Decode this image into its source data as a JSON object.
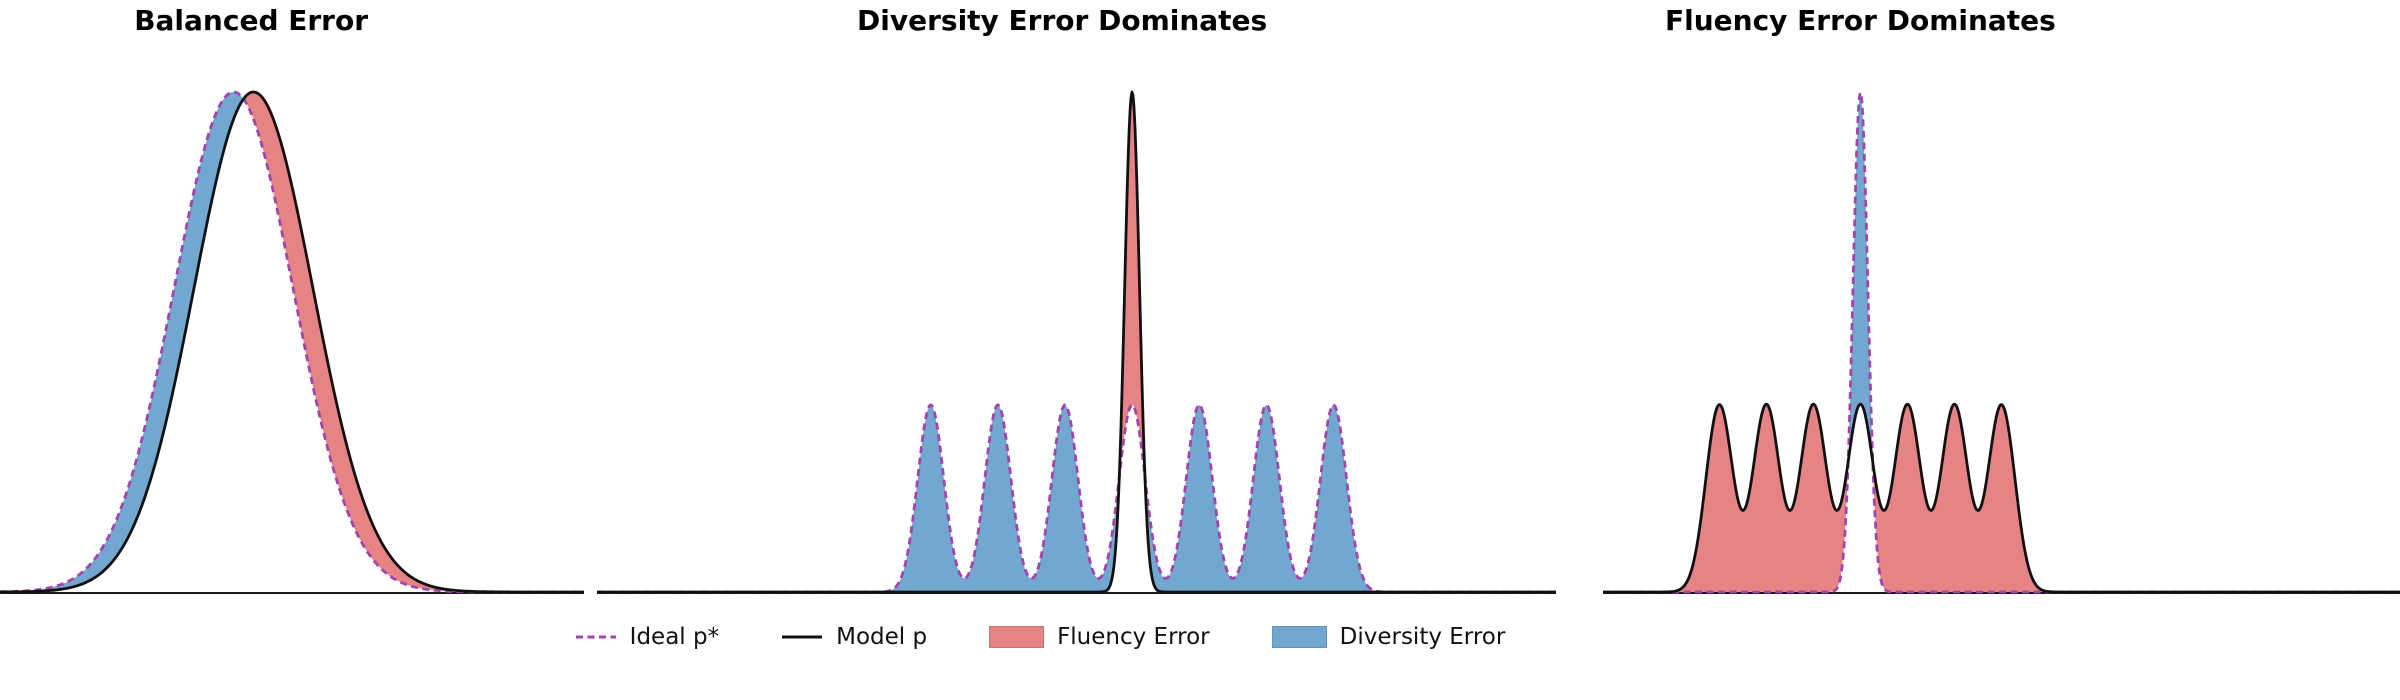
{
  "figure": {
    "background": "#ffffff"
  },
  "chart_data": {
    "type": "area",
    "description_visible": false,
    "colors": {
      "ideal": "#a344ad",
      "model": "#111111",
      "fluency": "#e68384",
      "diversity": "#72a8cf",
      "axis": "#1a1a1a"
    },
    "y_axis": {
      "visible": false,
      "ticks": []
    },
    "x_axis": {
      "ticks": [],
      "baseline_visible": true
    },
    "panels": [
      {
        "title": "Balanced Error",
        "ideal": {
          "label": "Ideal p*",
          "style": "dashed",
          "components": [
            {
              "mu": 40.0,
              "sigma": 10.2,
              "amp": 100
            }
          ]
        },
        "model": {
          "label": "Model p",
          "style": "solid",
          "components": [
            {
              "mu": 43.4,
              "sigma": 10.2,
              "amp": 100
            }
          ]
        },
        "fills": [
          {
            "name": "Diversity Error",
            "where": "ideal_gt_model",
            "color_key": "diversity"
          },
          {
            "name": "Fluency Error",
            "where": "model_gt_ideal",
            "color_key": "fluency"
          }
        ]
      },
      {
        "title": "Diversity Error Dominates",
        "ideal": {
          "label": "Ideal p*",
          "style": "dashed",
          "components": [
            {
              "mu": 34.8,
              "sigma": 1.36,
              "amp": 37.4
            },
            {
              "mu": 41.8,
              "sigma": 1.36,
              "amp": 37.4
            },
            {
              "mu": 48.8,
              "sigma": 1.36,
              "amp": 37.4
            },
            {
              "mu": 55.8,
              "sigma": 1.36,
              "amp": 37.4
            },
            {
              "mu": 62.8,
              "sigma": 1.36,
              "amp": 37.4
            },
            {
              "mu": 69.8,
              "sigma": 1.36,
              "amp": 37.4
            },
            {
              "mu": 76.8,
              "sigma": 1.36,
              "amp": 37.4
            }
          ]
        },
        "model": {
          "label": "Model p",
          "style": "solid",
          "components": [
            {
              "mu": 55.8,
              "sigma": 0.78,
              "amp": 100
            }
          ]
        },
        "fills": [
          {
            "name": "Diversity Error",
            "where": "ideal_gt_model",
            "color_key": "diversity"
          },
          {
            "name": "Fluency Error",
            "where": "model_gt_ideal",
            "color_key": "fluency"
          }
        ]
      },
      {
        "title": "Fluency Error Dominates",
        "ideal": {
          "label": "Ideal p*",
          "style": "dashed",
          "components": [
            {
              "mu": 32.3,
              "sigma": 0.94,
              "amp": 100
            }
          ]
        },
        "model": {
          "label": "Model p",
          "style": "solid",
          "components": [
            {
              "mu": 14.6,
              "sigma": 1.69,
              "amp": 37.4
            },
            {
              "mu": 20.5,
              "sigma": 1.69,
              "amp": 37.4
            },
            {
              "mu": 26.4,
              "sigma": 1.69,
              "amp": 37.4
            },
            {
              "mu": 32.3,
              "sigma": 1.69,
              "amp": 37.4
            },
            {
              "mu": 38.2,
              "sigma": 1.69,
              "amp": 37.4
            },
            {
              "mu": 44.1,
              "sigma": 1.69,
              "amp": 37.4
            },
            {
              "mu": 50.0,
              "sigma": 1.69,
              "amp": 37.4
            }
          ]
        },
        "fills": [
          {
            "name": "Diversity Error",
            "where": "ideal_gt_model",
            "color_key": "diversity"
          },
          {
            "name": "Fluency Error",
            "where": "model_gt_ideal",
            "color_key": "fluency"
          }
        ]
      }
    ],
    "legend": [
      {
        "label": "Ideal p*",
        "swatch": "dashed-line",
        "color_key": "ideal"
      },
      {
        "label": "Model p",
        "swatch": "solid-line",
        "color_key": "model"
      },
      {
        "label": "Fluency Error",
        "swatch": "patch",
        "color_key": "fluency"
      },
      {
        "label": "Diversity Error",
        "swatch": "patch",
        "color_key": "diversity"
      }
    ]
  }
}
